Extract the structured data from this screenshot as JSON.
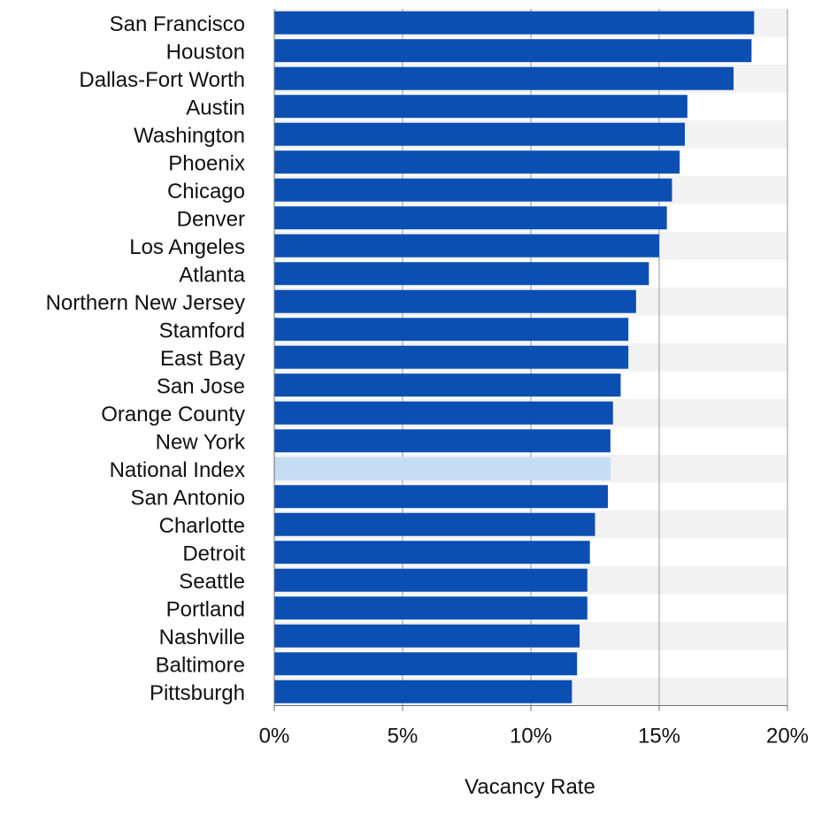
{
  "chart_data": {
    "type": "bar",
    "orientation": "horizontal",
    "title": "",
    "xlabel": "Vacancy Rate",
    "ylabel": "",
    "xlim": [
      0,
      20
    ],
    "x_ticks": [
      0,
      5,
      10,
      15,
      20
    ],
    "x_tick_labels": [
      "0%",
      "5%",
      "10%",
      "15%",
      "20%"
    ],
    "categories": [
      "San Francisco",
      "Houston",
      "Dallas-Fort Worth",
      "Austin",
      "Washington",
      "Phoenix",
      "Chicago",
      "Denver",
      "Los Angeles",
      "Atlanta",
      "Northern New Jersey",
      "Stamford",
      "East Bay",
      "San Jose",
      "Orange County",
      "New York",
      "National Index",
      "San Antonio",
      "Charlotte",
      "Detroit",
      "Seattle",
      "Portland",
      "Nashville",
      "Baltimore",
      "Pittsburgh"
    ],
    "values": [
      18.7,
      18.6,
      17.9,
      16.1,
      16.0,
      15.8,
      15.5,
      15.3,
      15.0,
      14.6,
      14.1,
      13.8,
      13.8,
      13.5,
      13.2,
      13.1,
      13.1,
      13.0,
      12.5,
      12.3,
      12.2,
      12.2,
      11.9,
      11.8,
      11.6
    ],
    "highlight_category": "National Index",
    "grid": "vertical",
    "legend": "none",
    "colors": {
      "bar": "#0b4fb3",
      "highlight_bar": "#c5dcf5",
      "stripe": "#f2f2f2",
      "gridline": "#9a9a9a",
      "axis": "#6f6f6f",
      "text": "#111111"
    }
  }
}
